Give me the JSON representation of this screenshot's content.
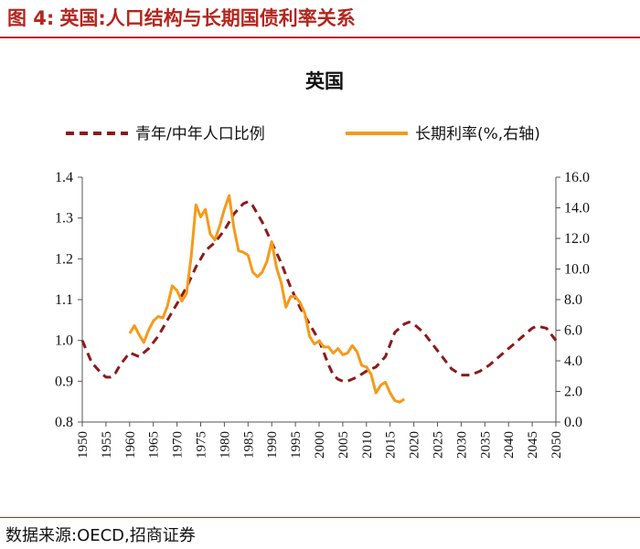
{
  "figure": {
    "label": "图 4:",
    "title": "英国:人口结构与长期国债利率关系",
    "source": "数据来源:OECD,招商证券"
  },
  "chart_data": {
    "type": "line",
    "title": "英国",
    "x_ticks": [
      "1950",
      "1955",
      "1960",
      "1965",
      "1970",
      "1975",
      "1980",
      "1985",
      "1990",
      "1995",
      "2000",
      "2005",
      "2010",
      "2015",
      "2020",
      "2025",
      "2030",
      "2035",
      "2040",
      "2045",
      "2050"
    ],
    "xlim": [
      1950,
      2050
    ],
    "y_left": {
      "lim": [
        0.8,
        1.4
      ],
      "ticks": [
        "0.8",
        "0.9",
        "1.0",
        "1.1",
        "1.2",
        "1.3",
        "1.4"
      ]
    },
    "y_right": {
      "lim": [
        0,
        16
      ],
      "ticks": [
        "0.0",
        "2.0",
        "4.0",
        "6.0",
        "8.0",
        "10.0",
        "12.0",
        "14.0",
        "16.0"
      ]
    },
    "colors": {
      "ratio": "#8b1a1a",
      "rate": "#f59a1a",
      "axis": "#555555"
    },
    "series": [
      {
        "name": "青年/中年人口比例",
        "axis": "left",
        "style": "dashed",
        "x": [
          1950,
          1952,
          1954,
          1955,
          1956,
          1957,
          1958,
          1960,
          1962,
          1964,
          1966,
          1968,
          1970,
          1972,
          1974,
          1976,
          1978,
          1980,
          1982,
          1984,
          1985,
          1986,
          1988,
          1990,
          1992,
          1994,
          1996,
          1998,
          2000,
          2001,
          2002,
          2003,
          2004,
          2005,
          2006,
          2008,
          2010,
          2011,
          2012,
          2014,
          2015,
          2016,
          2018,
          2019,
          2020,
          2022,
          2024,
          2026,
          2028,
          2030,
          2032,
          2034,
          2036,
          2038,
          2040,
          2042,
          2044,
          2045,
          2046,
          2048,
          2050
        ],
        "values": [
          1.0,
          0.945,
          0.92,
          0.91,
          0.91,
          0.92,
          0.94,
          0.97,
          0.96,
          0.98,
          1.01,
          1.05,
          1.09,
          1.13,
          1.18,
          1.22,
          1.24,
          1.27,
          1.31,
          1.335,
          1.34,
          1.33,
          1.29,
          1.24,
          1.19,
          1.13,
          1.08,
          1.04,
          1.0,
          0.97,
          0.94,
          0.915,
          0.905,
          0.9,
          0.9,
          0.91,
          0.925,
          0.93,
          0.935,
          0.96,
          0.99,
          1.02,
          1.04,
          1.045,
          1.04,
          1.02,
          0.99,
          0.96,
          0.93,
          0.915,
          0.915,
          0.925,
          0.94,
          0.96,
          0.98,
          1.0,
          1.02,
          1.03,
          1.035,
          1.03,
          1.0
        ]
      },
      {
        "name": "长期利率(%,右轴)",
        "axis": "right",
        "style": "solid",
        "x": [
          1960,
          1961,
          1962,
          1963,
          1964,
          1965,
          1966,
          1967,
          1968,
          1969,
          1970,
          1971,
          1972,
          1973,
          1974,
          1975,
          1976,
          1977,
          1978,
          1979,
          1980,
          1981,
          1982,
          1983,
          1984,
          1985,
          1986,
          1987,
          1988,
          1989,
          1990,
          1991,
          1992,
          1993,
          1994,
          1995,
          1996,
          1997,
          1998,
          1999,
          2000,
          2001,
          2002,
          2003,
          2004,
          2005,
          2006,
          2007,
          2008,
          2009,
          2010,
          2011,
          2012,
          2013,
          2014,
          2015,
          2016,
          2017,
          2018
        ],
        "values": [
          5.8,
          6.3,
          5.7,
          5.2,
          6.0,
          6.6,
          6.9,
          6.8,
          7.6,
          8.9,
          8.6,
          7.9,
          8.4,
          10.8,
          14.2,
          13.4,
          13.9,
          12.3,
          11.9,
          12.8,
          13.9,
          14.8,
          12.7,
          11.2,
          11.1,
          10.9,
          9.8,
          9.5,
          9.8,
          10.5,
          11.8,
          10.1,
          9.1,
          7.5,
          8.2,
          8.2,
          7.8,
          7.1,
          5.6,
          5.1,
          5.3,
          4.9,
          4.9,
          4.5,
          4.8,
          4.4,
          4.5,
          5.0,
          4.6,
          3.7,
          3.6,
          3.1,
          1.9,
          2.4,
          2.6,
          1.9,
          1.4,
          1.3,
          1.5
        ]
      }
    ]
  }
}
